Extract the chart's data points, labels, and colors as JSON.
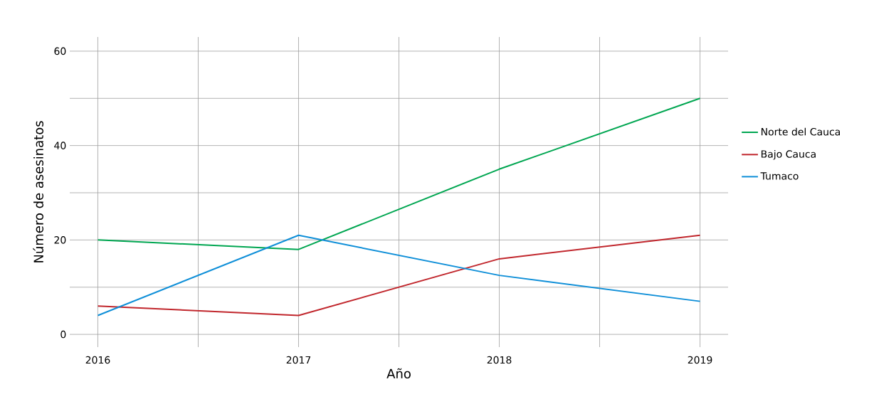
{
  "chart_data": {
    "type": "line",
    "xlabel": "Año",
    "ylabel": "Número de asesinatos",
    "x": [
      2016,
      2017,
      2018,
      2019
    ],
    "series": [
      {
        "name": "Norte del Cauca",
        "color": "#00a651",
        "values": [
          20,
          18,
          35,
          50
        ]
      },
      {
        "name": "Bajo Cauca",
        "color": "#c1272d",
        "values": [
          6,
          4,
          16,
          21
        ]
      },
      {
        "name": "Tumaco",
        "color": "#0f8fd8",
        "values": [
          4,
          21,
          12.5,
          7
        ]
      }
    ],
    "xlim": [
      2015.86,
      2019.14
    ],
    "ylim": [
      -2.7,
      63
    ],
    "xticks": [
      2016,
      {
        "value": 2016.5,
        "label": null
      },
      2017,
      {
        "value": 2017.5,
        "label": null
      },
      2018,
      {
        "value": 2018.5,
        "label": null
      },
      2019
    ],
    "yticks": [
      0,
      {
        "value": 10,
        "label": null
      },
      20,
      {
        "value": 30,
        "label": null
      },
      40,
      {
        "value": 50,
        "label": null
      },
      60
    ],
    "grid": true,
    "legend": "right",
    "marker": "none",
    "line_style": "solid"
  }
}
